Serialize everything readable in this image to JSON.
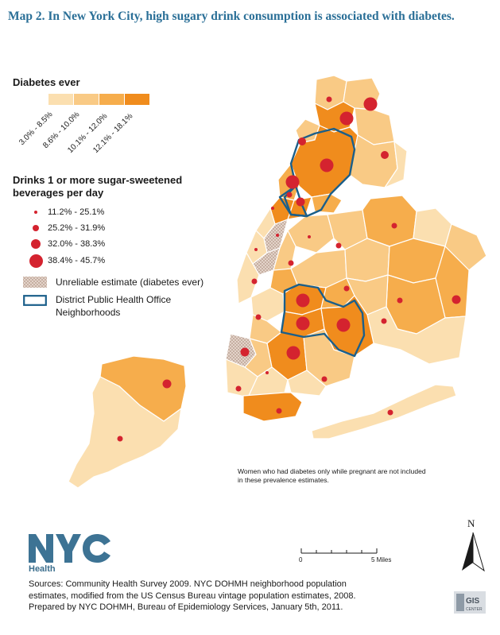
{
  "title": "Map 2. In New York City, high sugary drink consumption is associated with diabetes.",
  "legend_diabetes": {
    "heading": "Diabetes ever",
    "classes": [
      {
        "label": "3.0% - 8.5%",
        "color": "#fbdfb0"
      },
      {
        "label": "8.6% - 10.0%",
        "color": "#f9ca85"
      },
      {
        "label": "10.1% - 12.0%",
        "color": "#f6ad4c"
      },
      {
        "label": "12.1% - 18.1%",
        "color": "#f08c1d"
      }
    ]
  },
  "legend_drinks": {
    "heading_line1": "Drinks 1 or more sugar-sweetened",
    "heading_line2": "beverages per day",
    "classes": [
      {
        "label": "11.2% - 25.1%"
      },
      {
        "label": "25.2% - 31.9%"
      },
      {
        "label": "32.0% - 38.3%"
      },
      {
        "label": "38.4% - 45.7%"
      }
    ],
    "dot_color": "#d4232f"
  },
  "legend_other": {
    "unreliable": "Unreliable estimate (diabetes ever)",
    "dpho_line1": "District Public Health Office",
    "dpho_line2": "Neighborhoods",
    "dpho_color": "#1b5f8a"
  },
  "note_line1": "Women who had diabetes only while pregnant are not included",
  "note_line2": "in these prevalence estimates.",
  "logo": {
    "nyc": "NYC",
    "health": "Health",
    "color": "#3d7394"
  },
  "scale": {
    "zero": "0",
    "five": "5 Miles"
  },
  "north": "N",
  "sources": {
    "line1": "Sources: Community Health Survey 2009. NYC DOHMH neighborhood population",
    "line2": "estimates, modified from the US Census Bureau vintage population estimates, 2008.",
    "line3": "Prepared by NYC DOHMH, Bureau of Epidemiology Services, January 5th, 2011."
  },
  "gis_badge": {
    "text": "GIS",
    "sub": "CENTER"
  }
}
